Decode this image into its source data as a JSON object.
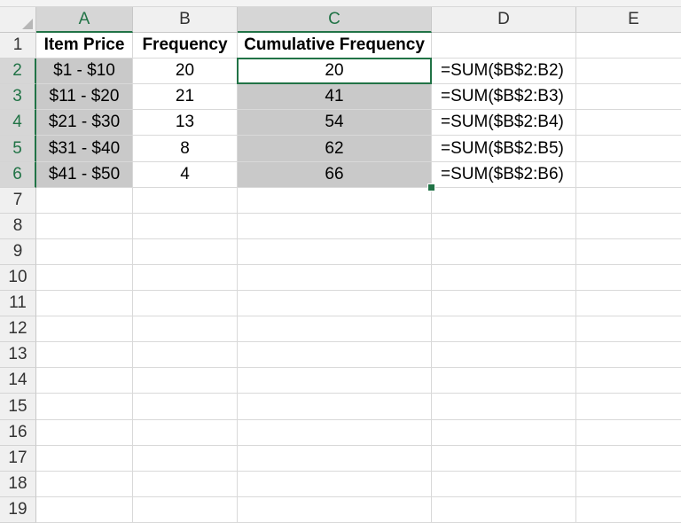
{
  "columns": [
    "A",
    "B",
    "C",
    "D",
    "E"
  ],
  "row_numbers": [
    "1",
    "2",
    "3",
    "4",
    "5",
    "6",
    "7",
    "8",
    "9",
    "10",
    "11",
    "12",
    "13",
    "14",
    "15",
    "16",
    "17",
    "18",
    "19"
  ],
  "selected_columns": [
    "A",
    "C"
  ],
  "selected_rows": [
    "2",
    "3",
    "4",
    "5",
    "6"
  ],
  "active_cell": "C2",
  "cells": {
    "A1": "Item Price",
    "B1": "Frequency",
    "C1": "Cumulative Frequency",
    "A2": "$1 - $10",
    "B2": "20",
    "C2": "20",
    "D2": "=SUM($B$2:B2)",
    "A3": "$11 - $20",
    "B3": "21",
    "C3": "41",
    "D3": "=SUM($B$2:B3)",
    "A4": "$21 - $30",
    "B4": "13",
    "C4": "54",
    "D4": "=SUM($B$2:B4)",
    "A5": "$31 - $40",
    "B5": "8",
    "C5": "62",
    "D5": "=SUM($B$2:B5)",
    "A6": "$41 - $50",
    "B6": "4",
    "C6": "66",
    "D6": "=SUM($B$2:B6)"
  },
  "colors": {
    "selection_accent": "#217346",
    "selected_range_fill": "#c9c9c9"
  }
}
